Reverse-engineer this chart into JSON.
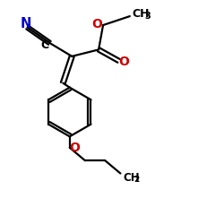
{
  "bg_color": "#ffffff",
  "atom_colors": {
    "N": "#0000cc",
    "O": "#cc0000",
    "C": "#000000"
  },
  "figsize": [
    2.5,
    2.5
  ],
  "dpi": 100,
  "bond_lw": 1.6,
  "font_size": 9.0
}
